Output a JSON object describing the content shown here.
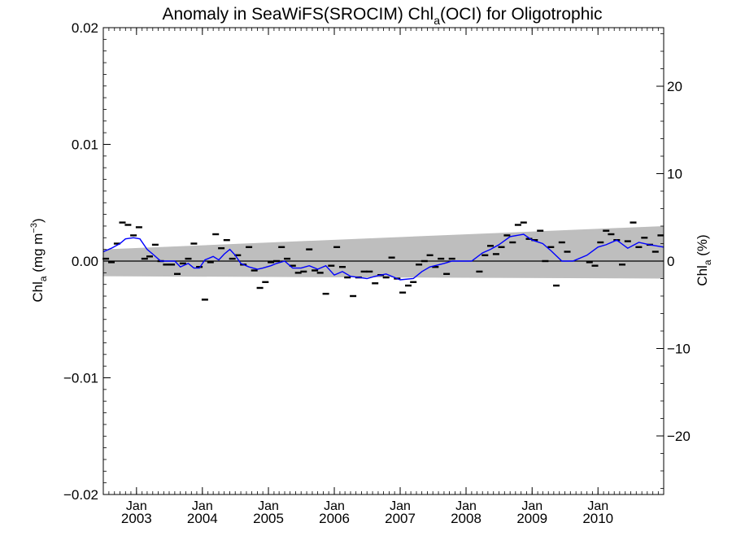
{
  "chart_data": {
    "type": "line",
    "title": "Anomaly in SeaWiFS(SROCIM) Chl",
    "title_sub": "a",
    "title_rest": "(OCI) for Oligotrophic",
    "ylabel_left": "Chl",
    "ylabel_left_sub": "a",
    "ylabel_left_unit": " (mg m",
    "ylabel_left_sup": "−3",
    "ylabel_left_close": ")",
    "ylabel_right": "Chl",
    "ylabel_right_sub": "a",
    "ylabel_right_unit": " (%)",
    "xlim": [
      "2002-07-01",
      "2010-12-31"
    ],
    "ylim_left": [
      -0.02,
      0.02
    ],
    "ylim_right": [
      -26.7,
      26.7
    ],
    "yticks_left": [
      {
        "value": 0.02,
        "label": "0.02"
      },
      {
        "value": 0.01,
        "label": "0.01"
      },
      {
        "value": 0.0,
        "label": "0.00"
      },
      {
        "value": -0.01,
        "label": "−0.01"
      },
      {
        "value": -0.02,
        "label": "−0.02"
      }
    ],
    "yticks_right": [
      {
        "value": 20,
        "label": "20"
      },
      {
        "value": 10,
        "label": "10"
      },
      {
        "value": 0,
        "label": "0"
      },
      {
        "value": -10,
        "label": "−10"
      },
      {
        "value": -20,
        "label": "−20"
      }
    ],
    "xticks": [
      {
        "date": "2003-01-01",
        "month": "Jan",
        "year": "2003"
      },
      {
        "date": "2004-01-01",
        "month": "Jan",
        "year": "2004"
      },
      {
        "date": "2005-01-01",
        "month": "Jan",
        "year": "2005"
      },
      {
        "date": "2006-01-01",
        "month": "Jan",
        "year": "2006"
      },
      {
        "date": "2007-01-01",
        "month": "Jan",
        "year": "2007"
      },
      {
        "date": "2008-01-01",
        "month": "Jan",
        "year": "2008"
      },
      {
        "date": "2009-01-01",
        "month": "Jan",
        "year": "2009"
      },
      {
        "date": "2010-01-01",
        "month": "Jan",
        "year": "2010"
      }
    ],
    "band": {
      "color": "#bebebe",
      "upper": [
        {
          "date": "2002-07-01",
          "value": 0.001
        },
        {
          "date": "2010-12-31",
          "value": 0.003
        }
      ],
      "lower": [
        {
          "date": "2002-07-01",
          "value": -0.0013
        },
        {
          "date": "2010-12-31",
          "value": -0.0015
        }
      ]
    },
    "zero_line": 0.0,
    "series": [
      {
        "type": "points",
        "color": "#000000",
        "points": [
          [
            "2002-07-15",
            0.0002
          ],
          [
            "2002-08-15",
            -0.0001
          ],
          [
            "2002-09-15",
            0.0015
          ],
          [
            "2002-10-15",
            0.0033
          ],
          [
            "2002-11-15",
            0.0031
          ],
          [
            "2002-12-15",
            0.0022
          ],
          [
            "2003-01-15",
            0.0029
          ],
          [
            "2003-02-15",
            0.0002
          ],
          [
            "2003-03-15",
            0.0004
          ],
          [
            "2003-04-15",
            0.0014
          ],
          [
            "2003-05-15",
            0.0
          ],
          [
            "2003-06-15",
            -0.0003
          ],
          [
            "2003-07-15",
            -0.0003
          ],
          [
            "2003-08-15",
            -0.0011
          ],
          [
            "2003-09-15",
            -0.0002
          ],
          [
            "2003-10-15",
            0.0002
          ],
          [
            "2003-11-15",
            0.0015
          ],
          [
            "2003-12-15",
            -0.0005
          ],
          [
            "2004-01-15",
            -0.0033
          ],
          [
            "2004-02-15",
            -0.0001
          ],
          [
            "2004-03-15",
            0.0023
          ],
          [
            "2004-04-15",
            0.0011
          ],
          [
            "2004-05-15",
            0.0018
          ],
          [
            "2004-06-15",
            0.0002
          ],
          [
            "2004-07-15",
            0.0005
          ],
          [
            "2004-08-15",
            -0.0003
          ],
          [
            "2004-09-15",
            0.0012
          ],
          [
            "2004-10-15",
            -0.0008
          ],
          [
            "2004-11-15",
            -0.0023
          ],
          [
            "2004-12-15",
            -0.0018
          ],
          [
            "2005-01-15",
            -0.0001
          ],
          [
            "2005-02-15",
            0.0
          ],
          [
            "2005-03-15",
            0.0012
          ],
          [
            "2005-04-15",
            0.0002
          ],
          [
            "2005-05-15",
            -0.0004
          ],
          [
            "2005-06-15",
            -0.001
          ],
          [
            "2005-07-15",
            -0.0009
          ],
          [
            "2005-08-15",
            0.001
          ],
          [
            "2005-09-15",
            -0.0008
          ],
          [
            "2005-10-15",
            -0.001
          ],
          [
            "2005-11-15",
            -0.0028
          ],
          [
            "2005-12-15",
            -0.0004
          ],
          [
            "2006-01-15",
            0.0012
          ],
          [
            "2006-02-15",
            -0.0005
          ],
          [
            "2006-03-15",
            -0.0014
          ],
          [
            "2006-04-15",
            -0.003
          ],
          [
            "2006-05-15",
            -0.0014
          ],
          [
            "2006-06-15",
            -0.0009
          ],
          [
            "2006-07-15",
            -0.0009
          ],
          [
            "2006-08-15",
            -0.0019
          ],
          [
            "2006-09-15",
            -0.0012
          ],
          [
            "2006-10-15",
            -0.0014
          ],
          [
            "2006-11-15",
            0.0003
          ],
          [
            "2006-12-15",
            -0.0015
          ],
          [
            "2007-01-15",
            -0.0027
          ],
          [
            "2007-02-15",
            -0.0021
          ],
          [
            "2007-03-15",
            -0.0018
          ],
          [
            "2007-04-15",
            -0.0003
          ],
          [
            "2007-05-15",
            0.0
          ],
          [
            "2007-06-15",
            0.0005
          ],
          [
            "2007-07-15",
            -0.0005
          ],
          [
            "2007-08-15",
            0.0002
          ],
          [
            "2007-09-15",
            -0.0011
          ],
          [
            "2007-10-15",
            0.0002
          ],
          [
            "2008-03-15",
            -0.0009
          ],
          [
            "2008-04-15",
            0.0005
          ],
          [
            "2008-05-15",
            0.0013
          ],
          [
            "2008-06-15",
            0.0006
          ],
          [
            "2008-07-15",
            0.0012
          ],
          [
            "2008-08-15",
            0.0022
          ],
          [
            "2008-09-15",
            0.0016
          ],
          [
            "2008-10-15",
            0.0031
          ],
          [
            "2008-11-15",
            0.0033
          ],
          [
            "2008-12-15",
            0.0019
          ],
          [
            "2009-01-15",
            0.0018
          ],
          [
            "2009-02-15",
            0.0026
          ],
          [
            "2009-03-15",
            0.0
          ],
          [
            "2009-04-15",
            0.0012
          ],
          [
            "2009-05-15",
            -0.0021
          ],
          [
            "2009-06-15",
            0.0016
          ],
          [
            "2009-07-15",
            0.0008
          ],
          [
            "2009-11-15",
            -0.0001
          ],
          [
            "2009-12-15",
            -0.0004
          ],
          [
            "2010-01-15",
            0.0016
          ],
          [
            "2010-02-15",
            0.0026
          ],
          [
            "2010-03-15",
            0.0023
          ],
          [
            "2010-04-15",
            0.0018
          ],
          [
            "2010-05-15",
            -0.0003
          ],
          [
            "2010-06-15",
            0.0017
          ],
          [
            "2010-07-15",
            0.0033
          ],
          [
            "2010-08-15",
            0.0012
          ],
          [
            "2010-09-15",
            0.002
          ],
          [
            "2010-10-15",
            0.0014
          ],
          [
            "2010-11-15",
            0.0008
          ],
          [
            "2010-12-15",
            0.0022
          ]
        ]
      },
      {
        "type": "line",
        "color": "#0000ff",
        "points": [
          [
            "2002-07-01",
            0.0008
          ],
          [
            "2002-08-15",
            0.0011
          ],
          [
            "2002-10-01",
            0.0015
          ],
          [
            "2002-11-01",
            0.0019
          ],
          [
            "2002-12-15",
            0.002
          ],
          [
            "2003-01-20",
            0.0019
          ],
          [
            "2003-03-01",
            0.001
          ],
          [
            "2003-04-01",
            0.0006
          ],
          [
            "2003-05-15",
            0.0
          ],
          [
            "2003-08-01",
            0.0
          ],
          [
            "2003-09-01",
            -0.0005
          ],
          [
            "2003-10-15",
            -0.0002
          ],
          [
            "2003-11-15",
            -0.0006
          ],
          [
            "2003-12-15",
            -0.0006
          ],
          [
            "2004-01-15",
            0.0001
          ],
          [
            "2004-03-01",
            0.0004
          ],
          [
            "2004-04-01",
            0.0001
          ],
          [
            "2004-05-01",
            0.0006
          ],
          [
            "2004-06-01",
            0.001
          ],
          [
            "2004-07-01",
            0.0005
          ],
          [
            "2004-08-01",
            -0.0002
          ],
          [
            "2004-09-15",
            -0.0005
          ],
          [
            "2004-11-01",
            -0.0007
          ],
          [
            "2004-12-01",
            -0.0006
          ],
          [
            "2005-01-15",
            -0.0004
          ],
          [
            "2005-02-15",
            -0.0002
          ],
          [
            "2005-04-01",
            0.0
          ],
          [
            "2005-05-15",
            -0.0006
          ],
          [
            "2005-07-01",
            -0.0006
          ],
          [
            "2005-08-15",
            -0.0004
          ],
          [
            "2005-10-01",
            -0.0007
          ],
          [
            "2005-11-15",
            -0.0004
          ],
          [
            "2006-01-01",
            -0.0012
          ],
          [
            "2006-02-15",
            -0.0009
          ],
          [
            "2006-04-01",
            -0.0013
          ],
          [
            "2006-05-15",
            -0.0014
          ],
          [
            "2006-07-01",
            -0.0015
          ],
          [
            "2006-08-15",
            -0.0013
          ],
          [
            "2006-10-15",
            -0.0011
          ],
          [
            "2007-01-01",
            -0.0016
          ],
          [
            "2007-03-15",
            -0.0015
          ],
          [
            "2007-05-01",
            -0.0009
          ],
          [
            "2007-06-15",
            -0.0005
          ],
          [
            "2007-09-01",
            -0.0002
          ],
          [
            "2007-10-15",
            0.0
          ],
          [
            "2008-02-01",
            0.0
          ],
          [
            "2008-04-01",
            0.0007
          ],
          [
            "2008-05-15",
            0.001
          ],
          [
            "2008-07-01",
            0.0014
          ],
          [
            "2008-09-01",
            0.0021
          ],
          [
            "2008-11-15",
            0.0023
          ],
          [
            "2009-01-01",
            0.0018
          ],
          [
            "2009-03-01",
            0.0015
          ],
          [
            "2009-04-15",
            0.0009
          ],
          [
            "2009-06-15",
            0.0
          ],
          [
            "2009-08-15",
            0.0
          ],
          [
            "2009-11-01",
            0.0005
          ],
          [
            "2010-01-01",
            0.0012
          ],
          [
            "2010-02-15",
            0.0014
          ],
          [
            "2010-04-15",
            0.0018
          ],
          [
            "2010-06-15",
            0.0011
          ],
          [
            "2010-08-15",
            0.0016
          ],
          [
            "2010-10-15",
            0.0014
          ],
          [
            "2010-12-31",
            0.0012
          ]
        ]
      }
    ]
  }
}
